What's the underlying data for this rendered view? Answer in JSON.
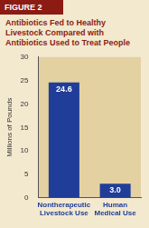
{
  "figure_label": "FIGURE 2",
  "chart_data": {
    "type": "bar",
    "title": "Antibiotics Fed to Healthy Livestock Compared with Antibiotics Used to Treat People",
    "y_label": "Millions of Pounds",
    "categories": [
      "Nontherapeutic Livestock Use",
      "Human Medical Use"
    ],
    "values": [
      24.6,
      3.0
    ],
    "value_labels": [
      "24.6",
      "3.0"
    ],
    "data_labels": true,
    "color": "#1f3d99",
    "ylim": [
      0,
      30
    ],
    "yticks": [
      0,
      5,
      10,
      15,
      20,
      25,
      30
    ],
    "grid": false
  }
}
